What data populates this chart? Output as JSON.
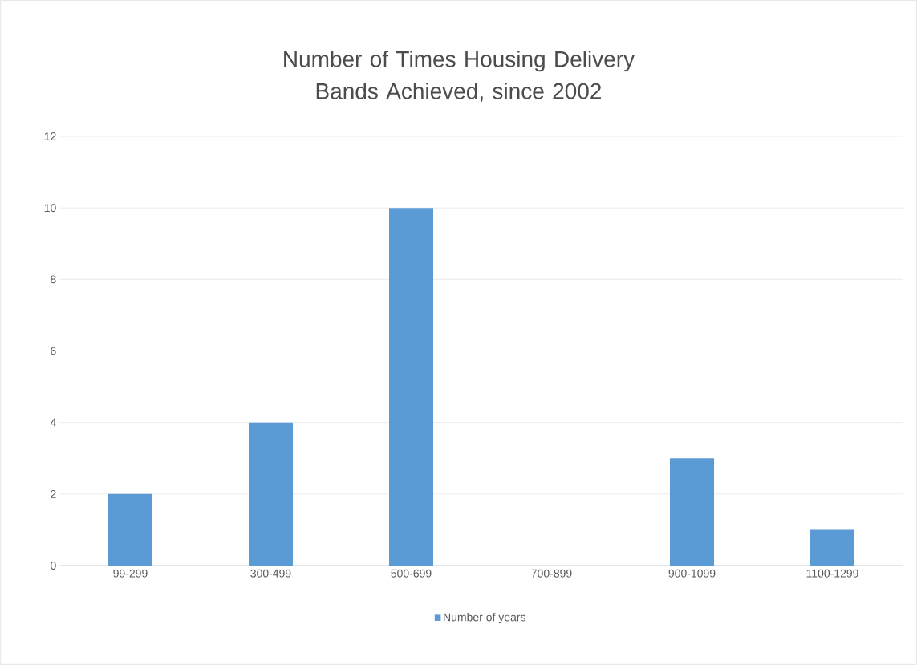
{
  "chart_data": {
    "type": "bar",
    "title": "Number of Times Housing Delivery Bands Achieved, since 2002",
    "categories": [
      "99-299",
      "300-499",
      "500-699",
      "700-899",
      "900-1099",
      "1100-1299"
    ],
    "series": [
      {
        "name": "Number of years",
        "color": "#5b9bd5",
        "values": [
          2,
          4,
          10,
          0,
          3,
          1
        ]
      }
    ],
    "ylim": [
      0,
      12
    ],
    "yticks": [
      0,
      2,
      4,
      6,
      8,
      10,
      12
    ],
    "grid": "y",
    "legend": "bottom"
  }
}
